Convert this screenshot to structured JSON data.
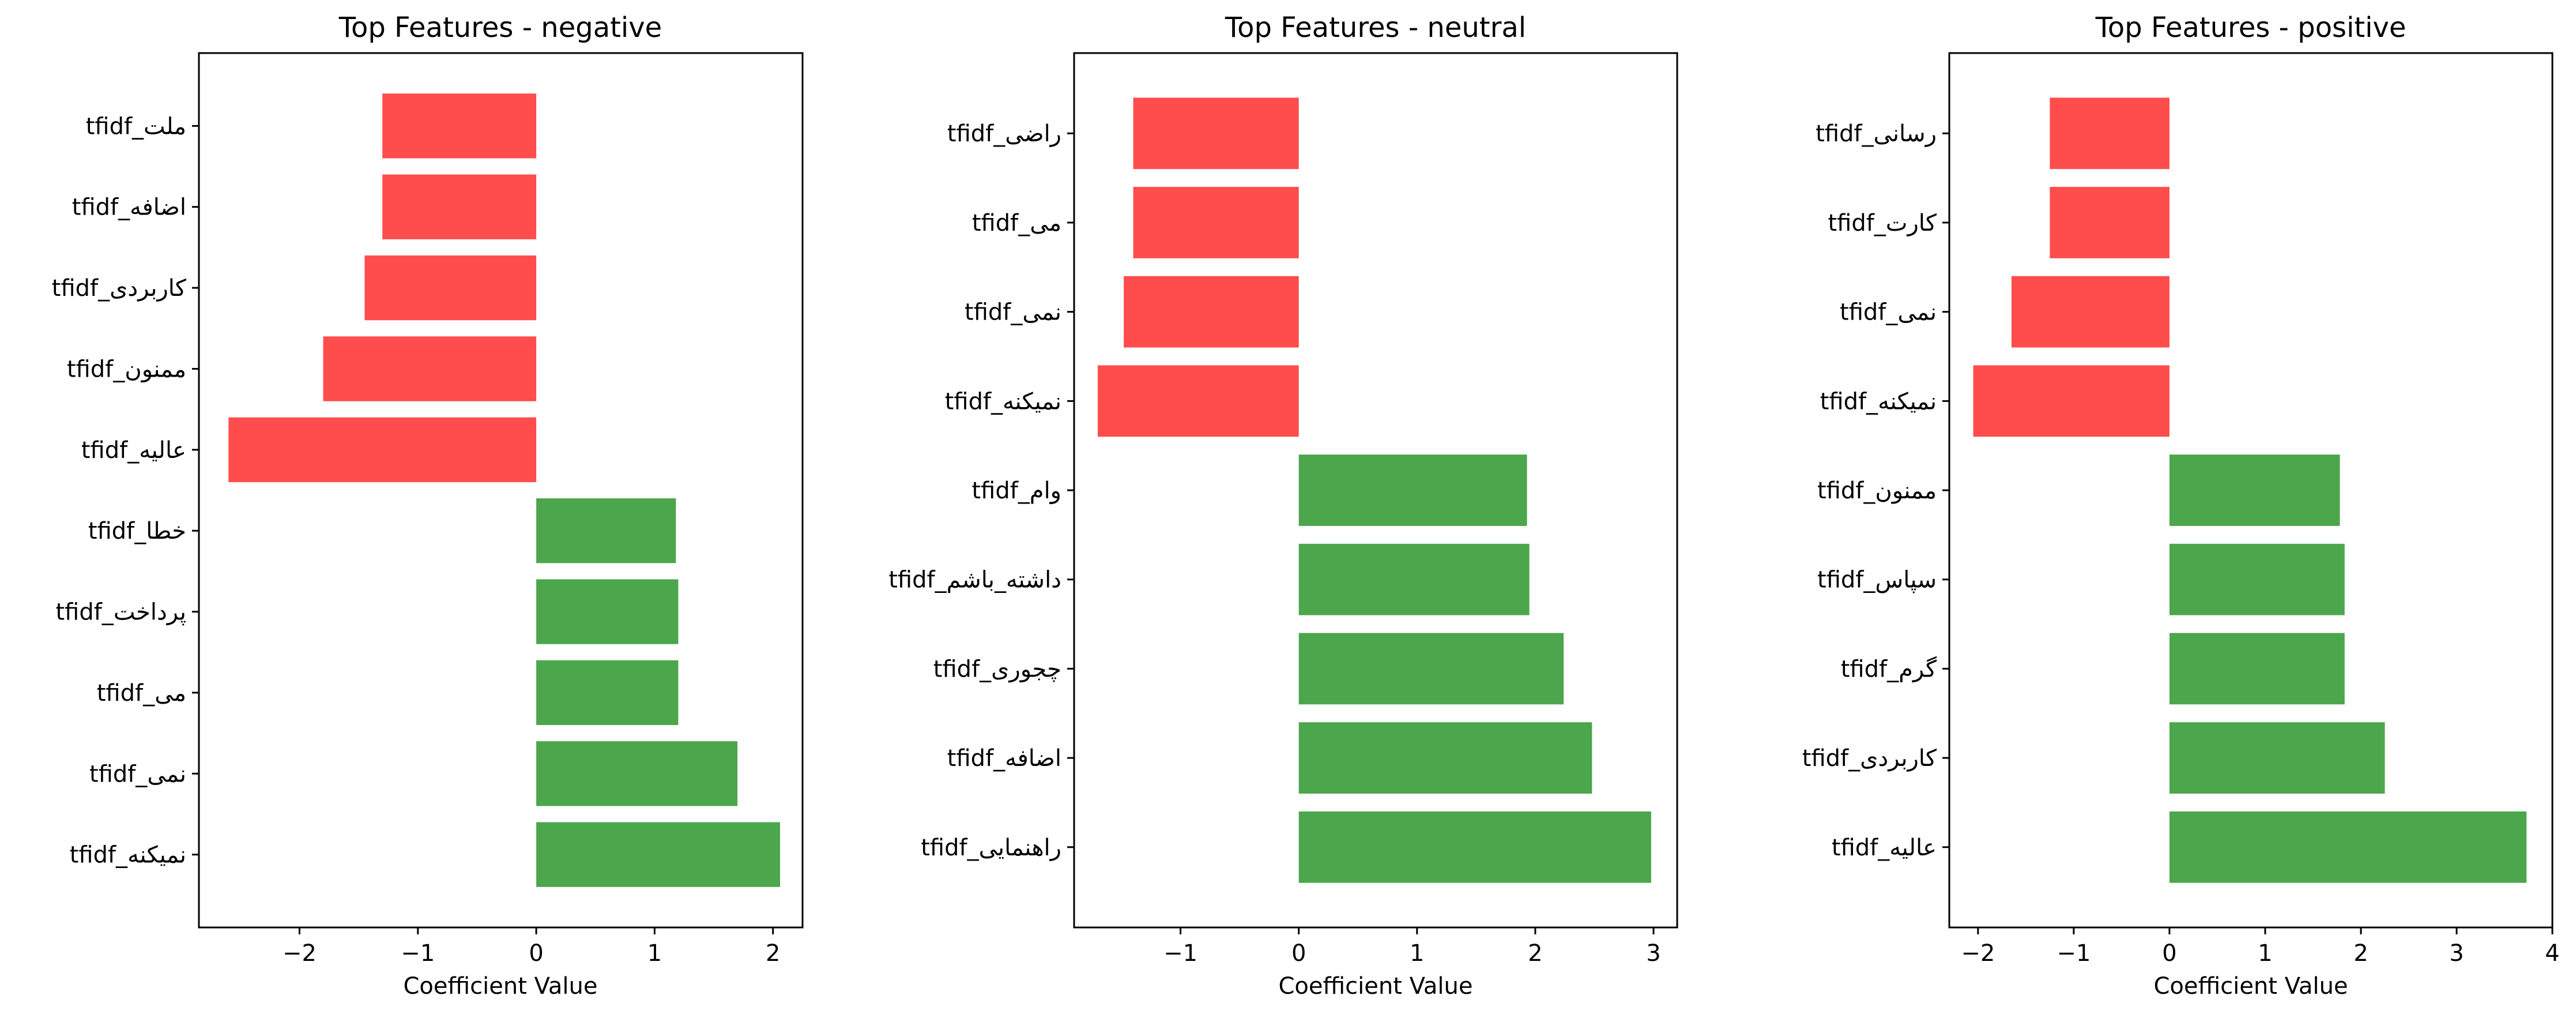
{
  "colors": {
    "negative_bar": "#FF4C4C",
    "positive_bar": "#4CA64C"
  },
  "chart_data": [
    {
      "type": "bar",
      "orientation": "horizontal",
      "title": "Top Features - negative",
      "xlabel": "Coefficient Value",
      "ylabel": "",
      "xlim": [
        -2.85,
        2.25
      ],
      "xticks": [
        -2,
        -1,
        0,
        1,
        2
      ],
      "xtick_labels": [
        "−2",
        "−1",
        "0",
        "1",
        "2"
      ],
      "grid": false,
      "categories": [
        "tfidf_ملت",
        "tfidf_اضافه",
        "tfidf_کاربردی",
        "tfidf_ممنون",
        "tfidf_عالیه",
        "tfidf_خطا",
        "tfidf_پرداخت",
        "tfidf_می",
        "tfidf_نمی",
        "tfidf_نمیکنه"
      ],
      "values": [
        -1.3,
        -1.3,
        -1.45,
        -1.8,
        -2.6,
        1.18,
        1.2,
        1.2,
        1.7,
        2.06
      ]
    },
    {
      "type": "bar",
      "orientation": "horizontal",
      "title": "Top Features - neutral",
      "xlabel": "Coefficient Value",
      "ylabel": "",
      "xlim": [
        -1.9,
        3.2
      ],
      "xticks": [
        -1,
        0,
        1,
        2,
        3
      ],
      "xtick_labels": [
        "−1",
        "0",
        "1",
        "2",
        "3"
      ],
      "grid": false,
      "categories": [
        "tfidf_راضی",
        "tfidf_می",
        "tfidf_نمی",
        "tfidf_نمیکنه",
        "tfidf_وام",
        "tfidf_داشته_باشم",
        "tfidf_چجوری",
        "tfidf_اضافه",
        "tfidf_راهنمایی"
      ],
      "values": [
        -1.4,
        -1.4,
        -1.48,
        -1.7,
        1.93,
        1.95,
        2.24,
        2.48,
        2.98
      ]
    },
    {
      "type": "bar",
      "orientation": "horizontal",
      "title": "Top Features - positive",
      "xlabel": "Coefficient Value",
      "ylabel": "",
      "xlim": [
        -2.3,
        4.0
      ],
      "xticks": [
        -2,
        -1,
        0,
        1,
        2,
        3,
        4
      ],
      "xtick_labels": [
        "−2",
        "−1",
        "0",
        "1",
        "2",
        "3",
        "4"
      ],
      "grid": false,
      "categories": [
        "tfidf_رسانی",
        "tfidf_کارت",
        "tfidf_نمی",
        "tfidf_نمیکنه",
        "tfidf_ممنون",
        "tfidf_سپاس",
        "tfidf_گرم",
        "tfidf_کاربردی",
        "tfidf_عالیه"
      ],
      "values": [
        -1.25,
        -1.25,
        -1.65,
        -2.05,
        1.78,
        1.83,
        1.83,
        2.25,
        3.73
      ]
    }
  ]
}
